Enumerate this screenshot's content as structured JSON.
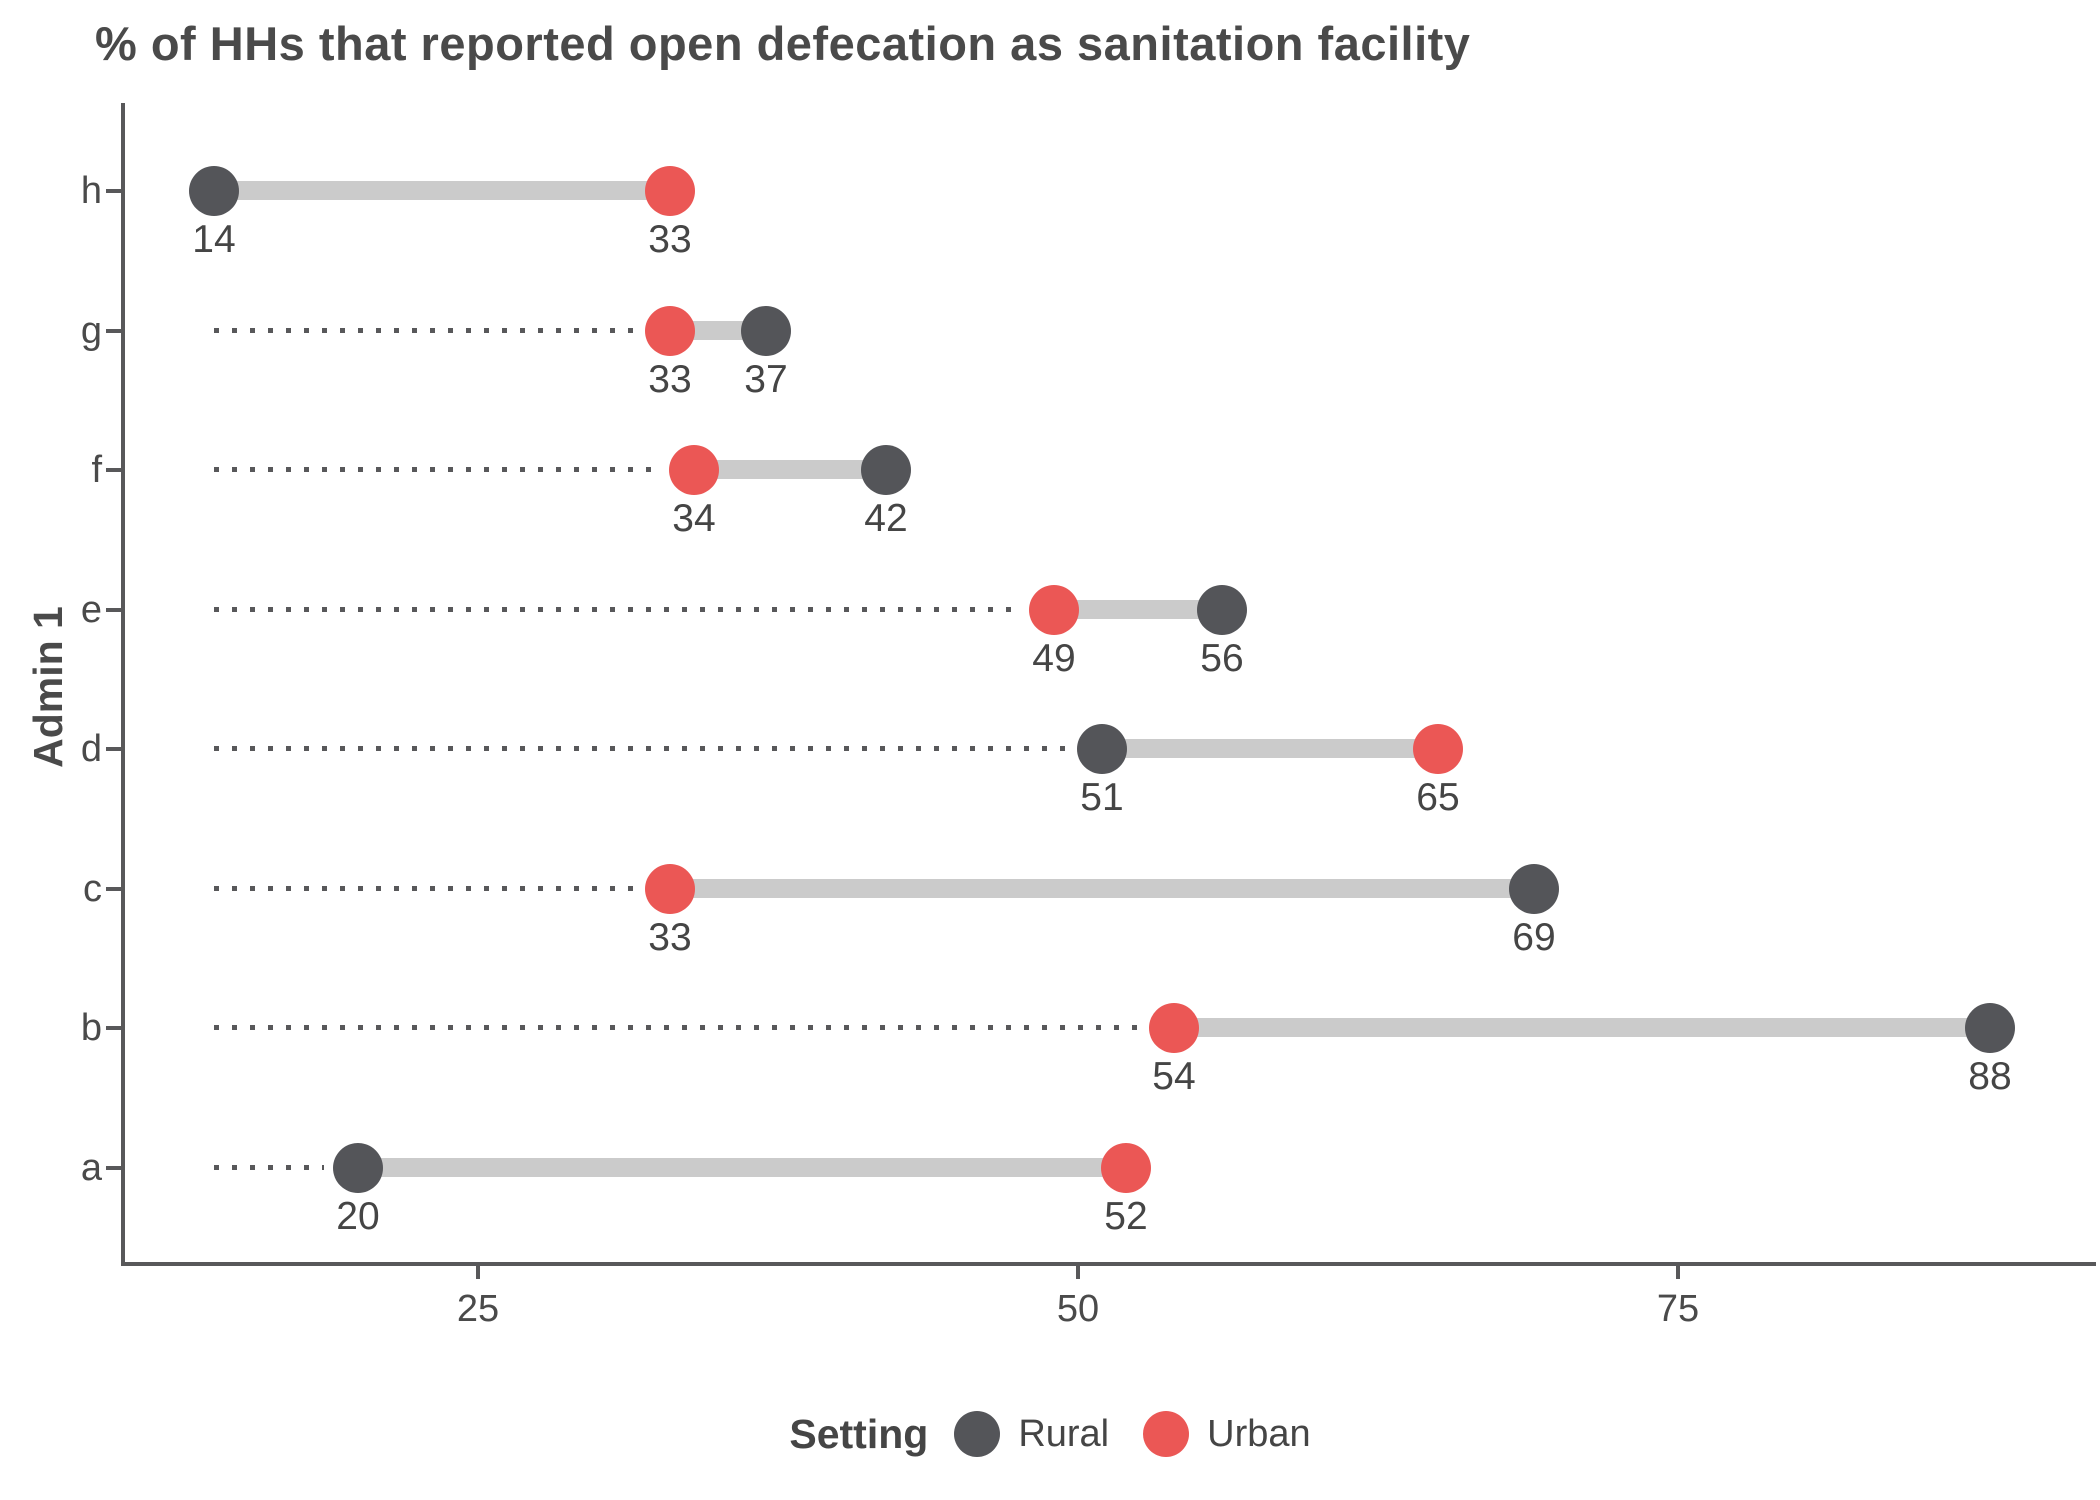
{
  "title": "% of HHs that reported open defecation as sanitation facility",
  "chart_data": {
    "type": "dumbbell",
    "title": "% of HHs that reported open defecation as sanitation facility",
    "xlabel": "",
    "ylabel": "Admin 1",
    "x_ticks": [
      25,
      50,
      75
    ],
    "x_range_approx": [
      10,
      92
    ],
    "grid": "off",
    "categories_top_to_bottom": [
      "h",
      "g",
      "f",
      "e",
      "d",
      "c",
      "b",
      "a"
    ],
    "rows": [
      {
        "category": "h",
        "rural": 14,
        "urban": 33
      },
      {
        "category": "g",
        "rural": 37,
        "urban": 33
      },
      {
        "category": "f",
        "rural": 42,
        "urban": 34
      },
      {
        "category": "e",
        "rural": 56,
        "urban": 49
      },
      {
        "category": "d",
        "rural": 51,
        "urban": 65
      },
      {
        "category": "c",
        "rural": 69,
        "urban": 33
      },
      {
        "category": "b",
        "rural": 88,
        "urban": 54
      },
      {
        "category": "a",
        "rural": 20,
        "urban": 52
      }
    ],
    "legend": {
      "title": "Setting",
      "position": "bottom",
      "items": [
        {
          "label": "Rural",
          "color": "#545559"
        },
        {
          "label": "Urban",
          "color": "#eb5755"
        }
      ]
    },
    "colors": {
      "rural": "#545559",
      "urban": "#eb5755",
      "connector": "#cbcbcb",
      "leader_dots": "#58585a",
      "axis": "#58585a",
      "text": "#4a4a4a"
    }
  }
}
